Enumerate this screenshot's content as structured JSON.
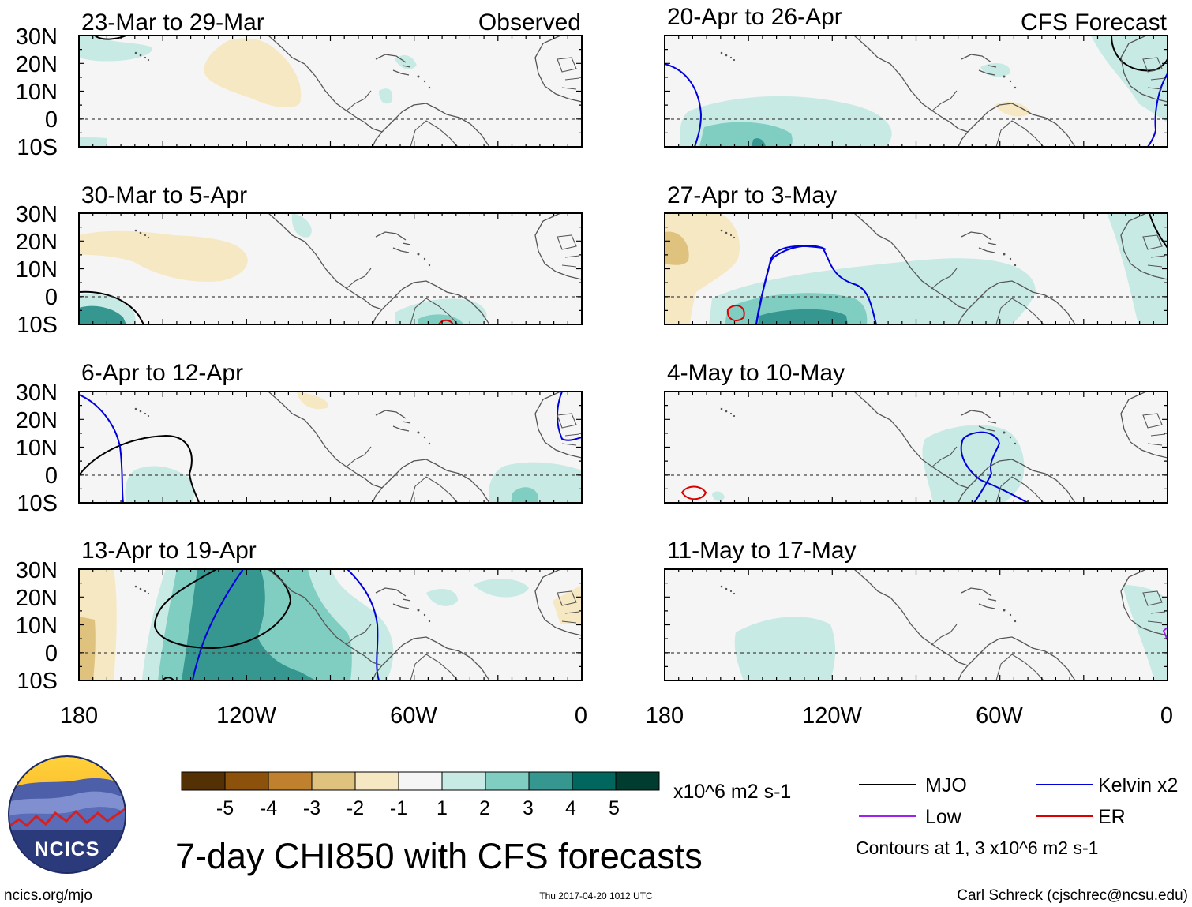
{
  "title": "7-day CHI850 with CFS forecasts",
  "header": {
    "observed_label": "Observed",
    "forecast_label": "CFS Forecast"
  },
  "axes": {
    "lat_labels": [
      "30N",
      "20N",
      "10N",
      "0",
      "10S"
    ],
    "lon_labels": [
      "180",
      "120W",
      "60W",
      "0"
    ]
  },
  "panels": [
    {
      "period": "23-Mar to 29-Mar",
      "type": "observed"
    },
    {
      "period": "30-Mar to 5-Apr",
      "type": "observed"
    },
    {
      "period": "6-Apr to 12-Apr",
      "type": "observed"
    },
    {
      "period": "13-Apr to 19-Apr",
      "type": "observed"
    },
    {
      "period": "20-Apr to 26-Apr",
      "type": "forecast"
    },
    {
      "period": "27-Apr to 3-May",
      "type": "forecast"
    },
    {
      "period": "4-May to 10-May",
      "type": "forecast"
    },
    {
      "period": "11-May to 17-May",
      "type": "forecast"
    }
  ],
  "colorbar": {
    "ticks": [
      "-5",
      "-4",
      "-3",
      "-2",
      "-1",
      "1",
      "2",
      "3",
      "4",
      "5"
    ],
    "colors": [
      "#543005",
      "#8c510a",
      "#bf812d",
      "#dfc27d",
      "#f6e8c3",
      "#f5f5f5",
      "#c7eae5",
      "#80cdc1",
      "#35978f",
      "#01665e",
      "#003c30"
    ],
    "units": "x10^6 m2 s-1"
  },
  "legend": {
    "items": [
      {
        "label": "MJO",
        "color": "#000000"
      },
      {
        "label": "Kelvin x2",
        "color": "#0000dd"
      },
      {
        "label": "Low",
        "color": "#a020f0"
      },
      {
        "label": "ER",
        "color": "#dd0000"
      }
    ],
    "contours_note": "Contours at 1, 3 x10^6 m2 s-1"
  },
  "footer": {
    "url": "ncics.org/mjo",
    "timestamp": "Thu 2017-04-20 1012 UTC",
    "author": "Carl Schreck (cjschrec@ncsu.edu)"
  },
  "logo": {
    "text": "NCICS"
  }
}
